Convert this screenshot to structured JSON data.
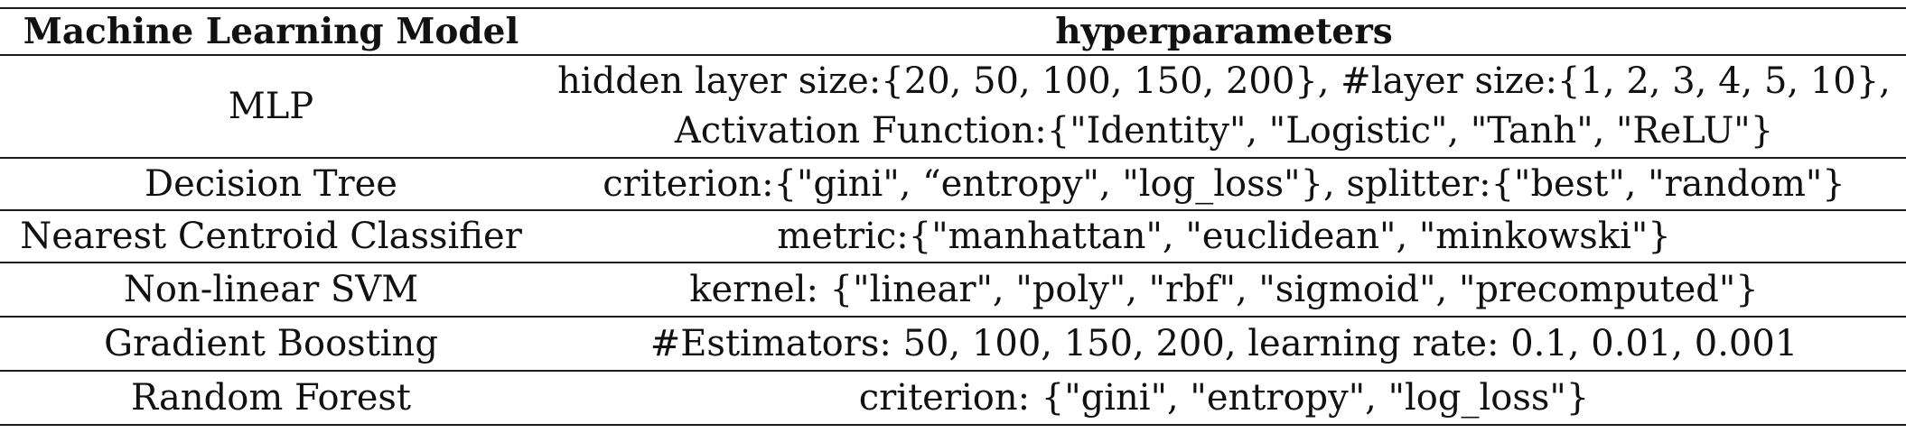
{
  "table": {
    "headers": [
      "Machine Learning Model",
      "hyperparameters"
    ],
    "rows": [
      {
        "model": "MLP",
        "hyperparameters": [
          "hidden layer size:{20, 50, 100, 150, 200}, #layer size:{1, 2, 3, 4, 5, 10},",
          "Activation Function:{\"Identity\", \"Logistic\", \"Tanh\", \"ReLU\"}"
        ]
      },
      {
        "model": "Decision Tree",
        "hyperparameters": [
          "criterion:{\"gini\", “entropy\", \"log_loss\"}, splitter:{\"best\", \"random\"}"
        ]
      },
      {
        "model": "Nearest Centroid Classifier",
        "hyperparameters": [
          "metric:{\"manhattan\", \"euclidean\", \"minkowski\"}"
        ]
      },
      {
        "model": "Non-linear SVM",
        "hyperparameters": [
          "kernel: {\"linear\", \"poly\", \"rbf\", \"sigmoid\", \"precomputed\"}"
        ]
      },
      {
        "model": "Gradient Boosting",
        "hyperparameters": [
          "#Estimators: 50, 100, 150, 200, learning rate: 0.1, 0.01, 0.001"
        ]
      },
      {
        "model": "Random Forest",
        "hyperparameters": [
          "criterion: {\"gini\", \"entropy\", \"log_loss\"}"
        ]
      }
    ]
  }
}
